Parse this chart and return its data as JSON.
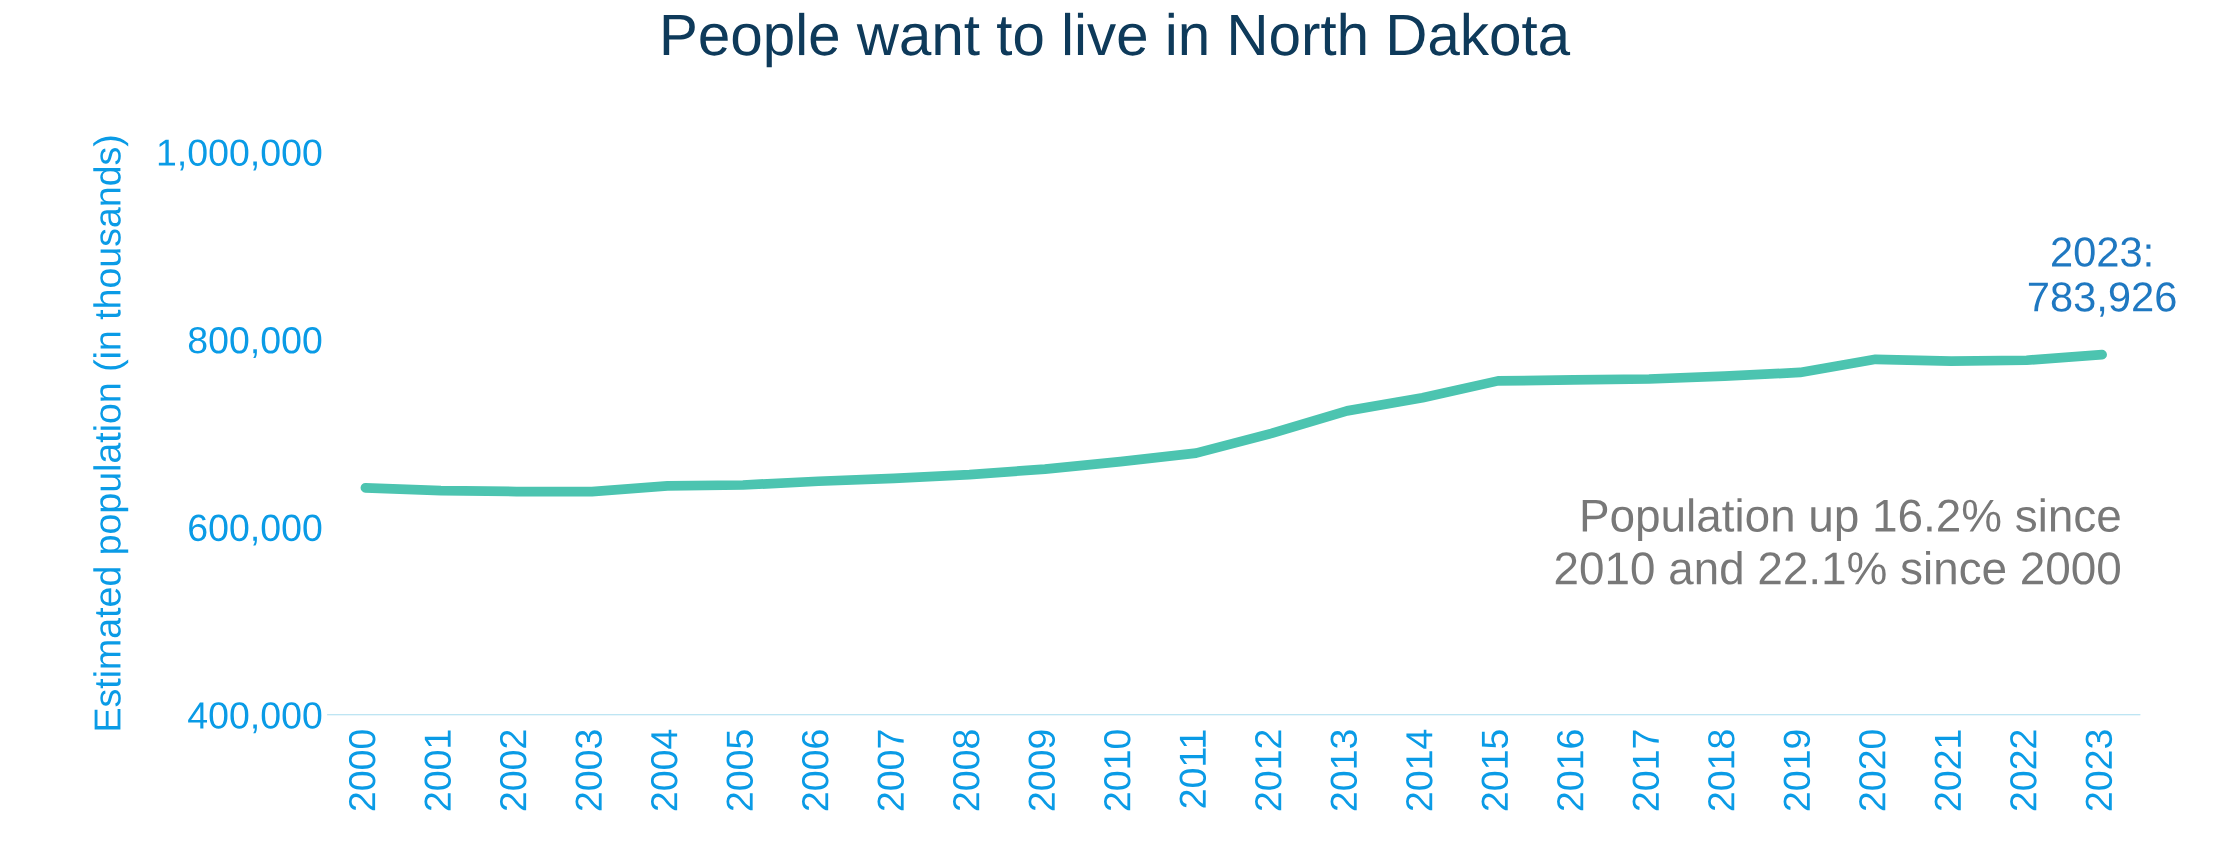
{
  "chart_data": {
    "type": "line",
    "title": "People want to live in North Dakota",
    "ylabel": "Estimated population (in thousands)",
    "categories": [
      "2000",
      "2001",
      "2002",
      "2003",
      "2004",
      "2005",
      "2006",
      "2007",
      "2008",
      "2009",
      "2010",
      "2011",
      "2012",
      "2013",
      "2014",
      "2015",
      "2016",
      "2017",
      "2018",
      "2019",
      "2020",
      "2021",
      "2022",
      "2023"
    ],
    "series": [
      {
        "color": "#4cc4b0",
        "values": [
          642000,
          639000,
          638000,
          638000,
          644000,
          645000,
          649000,
          652000,
          656000,
          662000,
          670000,
          679000,
          700000,
          724000,
          738000,
          756000,
          757000,
          758000,
          761000,
          765000,
          779000,
          777000,
          778000,
          783926
        ]
      }
    ],
    "ylim": [
      400000,
      1000000
    ],
    "yticks": [
      {
        "value": 400000,
        "label": "400,000"
      },
      {
        "value": 600000,
        "label": "600,000"
      },
      {
        "value": 800000,
        "label": "800,000"
      },
      {
        "value": 1000000,
        "label": "1,000,000"
      }
    ],
    "grid": false,
    "legend": false,
    "marker": "none",
    "line_style": "solid",
    "annotations": [
      {
        "text": "2023:\n783,926",
        "x": "2023",
        "y": 783926
      },
      "Population up 16.2% since\n2010 and 22.1% since 2000"
    ]
  }
}
